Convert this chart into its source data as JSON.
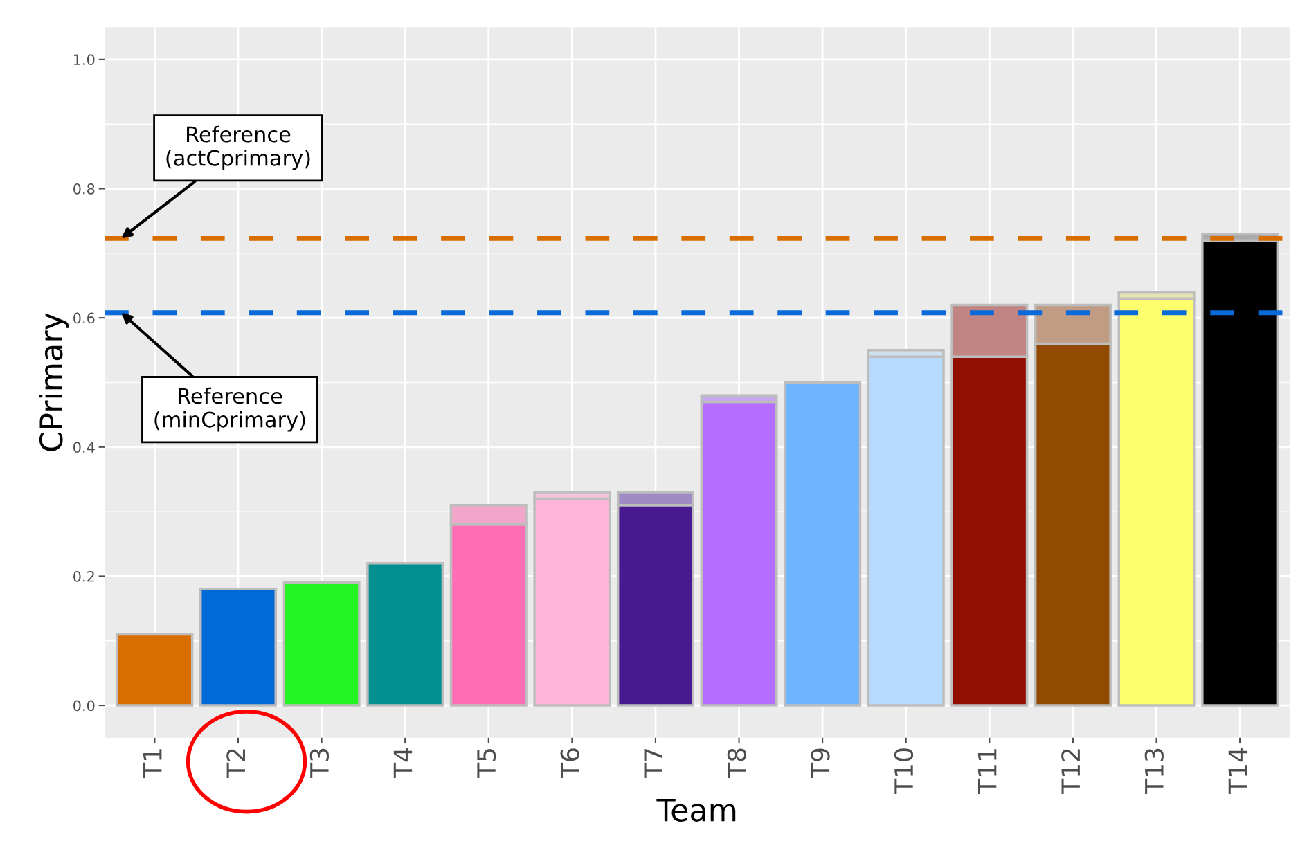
{
  "chart_data": {
    "type": "bar",
    "stacked": true,
    "xlabel": "Team",
    "ylabel": "CPrimary",
    "categories": [
      "T1",
      "T2",
      "T3",
      "T4",
      "T5",
      "T6",
      "T7",
      "T8",
      "T9",
      "T10",
      "T11",
      "T12",
      "T13",
      "T14"
    ],
    "series": [
      {
        "colors": [
          "#d96e00",
          "#006ad9",
          "#23f523",
          "#009090",
          "#ff6db4",
          "#ffb4da",
          "#491a8f",
          "#b56dff",
          "#6db6ff",
          "#b6dbff",
          "#910f00",
          "#924900",
          "#ffff6d",
          "#000000"
        ],
        "values": [
          0.11,
          0.18,
          0.19,
          0.22,
          0.28,
          0.32,
          0.31,
          0.47,
          0.5,
          0.54,
          0.54,
          0.56,
          0.63,
          0.72
        ]
      },
      {
        "colors": [
          "#cccccc",
          "#cccccc",
          "#cccccc",
          "#cccccc",
          "#f3a6cb",
          "#f5c4dc",
          "#9f8ac3",
          "#c9a6f0",
          "#cccccc",
          "#cfe0ef",
          "#c08482",
          "#c09c84",
          "#e5e5b4",
          "#aaaaaa"
        ],
        "values": [
          null,
          null,
          null,
          null,
          0.03,
          0.01,
          0.02,
          0.01,
          null,
          0.01,
          0.08,
          0.06,
          0.01,
          0.01
        ]
      }
    ],
    "ylim": [
      -0.05,
      1.05
    ],
    "yticks": [
      {
        "value": 0,
        "label": "0.0"
      },
      0.2,
      0.4,
      0.6,
      0.8,
      {
        "value": 1,
        "label": "1.0"
      }
    ],
    "grid": true,
    "ref_lines": [
      {
        "axis": "y",
        "value": 0.723,
        "label": "Reference\n(actCprimary)",
        "color": "#d96e00",
        "line_style": "dashed"
      },
      {
        "axis": "y",
        "value": 0.608,
        "label": "Reference\n(minCprimary)",
        "color": "#0a6ad9",
        "line_style": "dashed"
      }
    ]
  }
}
